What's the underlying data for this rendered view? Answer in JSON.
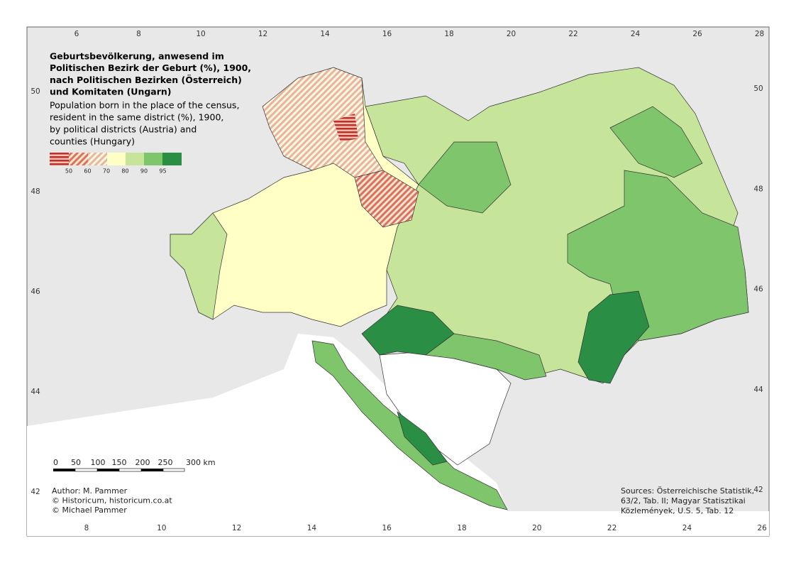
{
  "title": [
    "Geburtsbevölkerung, anwesend im",
    "Politischen Bezirk der Geburt (%), 1900,",
    "nach Politischen Bezirken (Österreich)",
    "und Komitaten (Ungarn)"
  ],
  "subtitle": [
    "Population born in the place of the census,",
    "resident in the same district (%), 1900,",
    "by political districts (Austria) and",
    "counties (Hungary)"
  ],
  "legend": {
    "labels": [
      50,
      60,
      70,
      80,
      90,
      95
    ]
  },
  "scale_bar": {
    "labels": [
      "0",
      "50",
      "100",
      "150",
      "200",
      "250",
      "300 km"
    ]
  },
  "credits": [
    "Author: M. Pammer",
    "© Historicum, historicum.co.at",
    "© Michael Pammer"
  ],
  "sources": [
    "Sources: Österreichische Statistik,",
    "63/2, Tab. II; Magyar Statisztikai",
    "Közlemények, U.S. 5, Tab. 12"
  ],
  "graticule": {
    "top": [
      6,
      8,
      10,
      12,
      14,
      16,
      18,
      20,
      22,
      24,
      26,
      28
    ],
    "bottom": [
      8,
      10,
      12,
      14,
      16,
      18,
      20,
      22,
      24,
      26
    ],
    "left": [
      50,
      48,
      46,
      44,
      42
    ],
    "right": [
      50,
      48,
      46,
      44,
      42
    ]
  }
}
